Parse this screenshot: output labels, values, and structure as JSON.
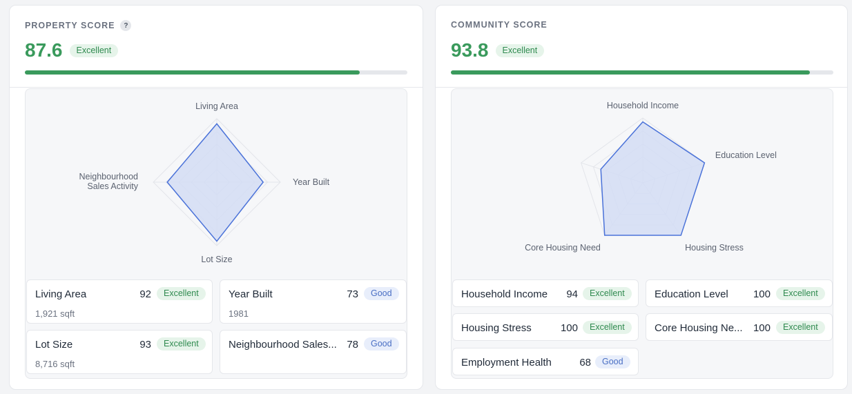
{
  "property": {
    "title": "PROPERTY SCORE",
    "help_icon": "?",
    "score": "87.6",
    "rating": "Excellent",
    "progress": 0.876,
    "radar": {
      "axes": [
        "Living Area",
        "Year Built",
        "Lot Size",
        "Neighbourhood Sales Activity"
      ],
      "axis_label_lines": [
        [
          "Living Area"
        ],
        [
          "Year Built"
        ],
        [
          "Lot Size"
        ],
        [
          "Neighbourhood",
          "Sales Activity"
        ]
      ],
      "values": [
        92,
        73,
        93,
        78
      ],
      "max": 100
    },
    "metrics": [
      {
        "name": "Living Area",
        "score": "92",
        "rating": "Excellent",
        "detail": "1,921 sqft"
      },
      {
        "name": "Year Built",
        "score": "73",
        "rating": "Good",
        "detail": "1981"
      },
      {
        "name": "Lot Size",
        "score": "93",
        "rating": "Excellent",
        "detail": "8,716 sqft"
      },
      {
        "name": "Neighbourhood Sales...",
        "score": "78",
        "rating": "Good",
        "detail": ""
      }
    ]
  },
  "community": {
    "title": "COMMUNITY SCORE",
    "score": "93.8",
    "rating": "Excellent",
    "progress": 0.938,
    "radar": {
      "axes": [
        "Household Income",
        "Education Level",
        "Housing Stress",
        "Core Housing Need",
        "Employment Health"
      ],
      "values": [
        94,
        100,
        100,
        100,
        68
      ],
      "max": 100
    },
    "metrics": [
      {
        "name": "Household Income",
        "score": "94",
        "rating": "Excellent"
      },
      {
        "name": "Education Level",
        "score": "100",
        "rating": "Excellent"
      },
      {
        "name": "Housing Stress",
        "score": "100",
        "rating": "Excellent"
      },
      {
        "name": "Core Housing Ne...",
        "score": "100",
        "rating": "Excellent"
      },
      {
        "name": "Employment Health",
        "score": "68",
        "rating": "Good"
      }
    ]
  },
  "colors": {
    "accent_green": "#3a9a5c",
    "radar_stroke": "#4a72d9",
    "radar_fill": "#d3ddf4"
  }
}
